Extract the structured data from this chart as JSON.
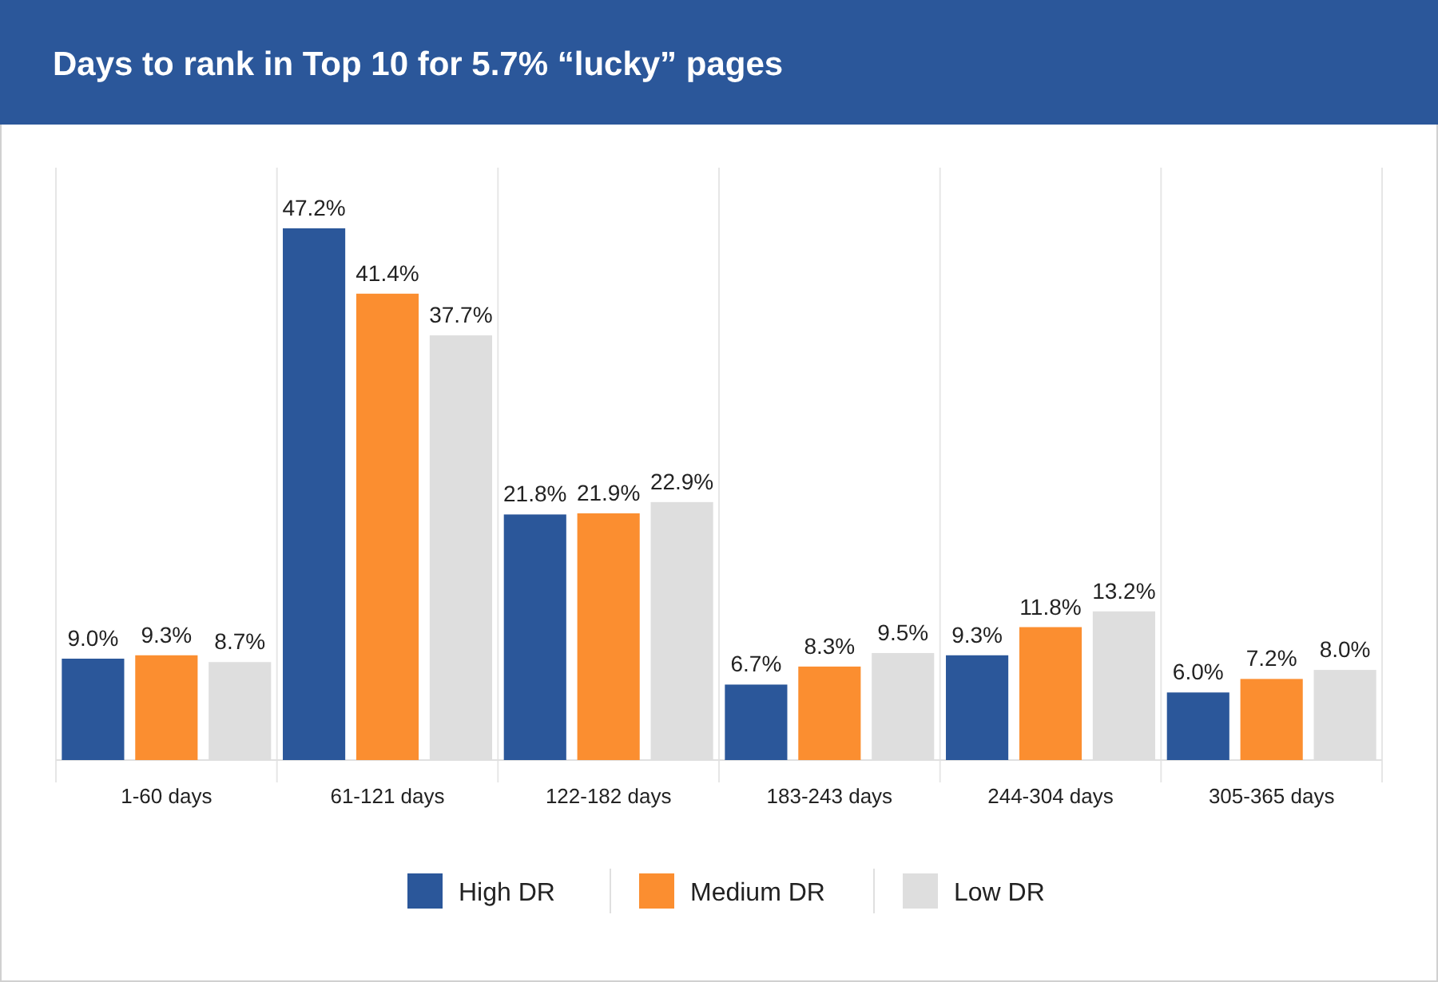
{
  "chart_data": {
    "type": "bar",
    "title": "Days to rank in Top 10 for 5.7% “lucky” pages",
    "categories": [
      "1-60 days",
      "61-121 days",
      "122-182 days",
      "183-243 days",
      "244-304 days",
      "305-365 days"
    ],
    "series": [
      {
        "name": "High DR",
        "color": "#2b579a",
        "values": [
          9.0,
          47.2,
          21.8,
          6.7,
          9.3,
          6.0
        ],
        "value_labels": [
          "9.0%",
          "47.2%",
          "21.8%",
          "6.7%",
          "9.3%",
          "6.0%"
        ]
      },
      {
        "name": "Medium DR",
        "color": "#fb8e30",
        "values": [
          9.3,
          41.4,
          21.9,
          8.3,
          11.8,
          7.2
        ],
        "value_labels": [
          "9.3%",
          "41.4%",
          "21.9%",
          "8.3%",
          "11.8%",
          "7.2%"
        ]
      },
      {
        "name": "Low DR",
        "color": "#dedede",
        "values": [
          8.7,
          37.7,
          22.9,
          9.5,
          13.2,
          8.0
        ],
        "value_labels": [
          "8.7%",
          "37.7%",
          "22.9%",
          "9.5%",
          "13.2%",
          "8.0%"
        ]
      }
    ],
    "legend": "bottom"
  }
}
